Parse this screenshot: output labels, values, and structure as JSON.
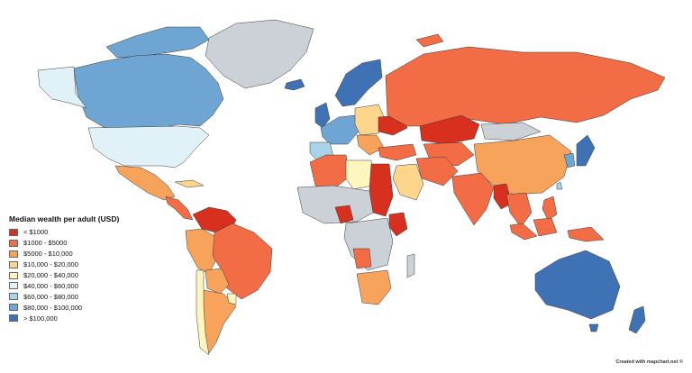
{
  "legend": {
    "title": "Median wealth per adult (USD)",
    "items": [
      {
        "label": "< $1000",
        "color": "#d7301f"
      },
      {
        "label": "$1000 - $5000",
        "color": "#f26d45"
      },
      {
        "label": "$5000 - $10,000",
        "color": "#f8a35c"
      },
      {
        "label": "$10,000 - $20,000",
        "color": "#fdd58c"
      },
      {
        "label": "$20,000 - $40,000",
        "color": "#fff6be"
      },
      {
        "label": "$40,000 - $60,000",
        "color": "#e1f1f8"
      },
      {
        "label": "$60,000 - $80,000",
        "color": "#a9d3e8"
      },
      {
        "label": "$80,000 - $100,000",
        "color": "#6fa5d2"
      },
      {
        "label": "> $100,000",
        "color": "#3e72b5"
      }
    ]
  },
  "no_data_color": "#cbd1d6",
  "credit": "Created with mapchart.net ©"
}
